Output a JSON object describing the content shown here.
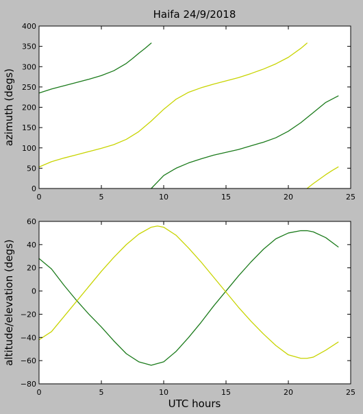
{
  "figure": {
    "title": "Haifa 24/9/2018",
    "xlabel": "UTC hours"
  },
  "colors": {
    "figure_bg": "#bfbfbf",
    "axes_bg": "#ffffff",
    "green": "#1a7a1a",
    "yellow": "#c8d400"
  },
  "chart_data": [
    {
      "type": "line",
      "ylabel": "azimuth (degs)",
      "xlim": [
        0,
        25
      ],
      "ylim": [
        0,
        400
      ],
      "xticks": [
        0,
        5,
        10,
        15,
        20,
        25
      ],
      "yticks": [
        0,
        50,
        100,
        150,
        200,
        250,
        300,
        350,
        400
      ],
      "grid": false,
      "series": [
        {
          "color": "green",
          "segments": [
            {
              "x": [
                0,
                1,
                2,
                3,
                4,
                5,
                6,
                7,
                7.5,
                8,
                8.5,
                9
              ],
              "y": [
                235,
                245,
                253,
                261,
                269,
                278,
                290,
                308,
                320,
                333,
                345,
                358
              ]
            },
            {
              "x": [
                9,
                9.5,
                10,
                11,
                12,
                13,
                14,
                15,
                16,
                17,
                18,
                19,
                20,
                21,
                22,
                23,
                24
              ],
              "y": [
                0,
                16,
                32,
                50,
                63,
                73,
                82,
                89,
                96,
                105,
                114,
                125,
                141,
                162,
                187,
                212,
                228
              ]
            }
          ]
        },
        {
          "color": "yellow",
          "segments": [
            {
              "x": [
                0,
                1,
                2,
                3,
                4,
                5,
                6,
                7,
                8,
                9,
                10,
                11,
                12,
                13,
                14,
                15,
                16,
                17,
                18,
                19,
                20,
                21,
                21.5
              ],
              "y": [
                53,
                66,
                75,
                83,
                91,
                99,
                108,
                121,
                140,
                166,
                195,
                220,
                237,
                248,
                257,
                265,
                273,
                283,
                294,
                307,
                323,
                345,
                358
              ]
            },
            {
              "x": [
                21.5,
                22,
                22.5,
                23,
                23.5,
                24
              ],
              "y": [
                0,
                12,
                23,
                34,
                44,
                53
              ]
            }
          ]
        }
      ]
    },
    {
      "type": "line",
      "ylabel": "altitude/elevation (degs)",
      "xlabel": "UTC hours",
      "xlim": [
        0,
        25
      ],
      "ylim": [
        -80,
        60
      ],
      "xticks": [
        0,
        5,
        10,
        15,
        20,
        25
      ],
      "yticks": [
        -80,
        -60,
        -40,
        -20,
        0,
        20,
        40,
        60
      ],
      "grid": false,
      "series": [
        {
          "color": "green",
          "x": [
            0,
            1,
            2,
            3,
            4,
            5,
            6,
            7,
            8,
            9,
            10,
            11,
            12,
            13,
            14,
            15,
            16,
            17,
            18,
            19,
            20,
            21,
            21.5,
            22,
            23,
            24
          ],
          "y": [
            28,
            19,
            5,
            -8,
            -20,
            -31,
            -43,
            -54,
            -61,
            -64,
            -61,
            -52,
            -40,
            -27,
            -13,
            0,
            13,
            25,
            36,
            45,
            50,
            52,
            52,
            51,
            46,
            38
          ]
        },
        {
          "color": "yellow",
          "x": [
            0,
            1,
            2,
            3,
            4,
            5,
            6,
            7,
            8,
            9,
            9.5,
            10,
            11,
            12,
            13,
            14,
            15,
            16,
            17,
            18,
            19,
            20,
            21,
            21.5,
            22,
            23,
            24
          ],
          "y": [
            -42,
            -35,
            -22,
            -9,
            4,
            17,
            29,
            40,
            49,
            55,
            56,
            55,
            48,
            37,
            25,
            12,
            -1,
            -14,
            -26,
            -37,
            -47,
            -55,
            -58,
            -58,
            -57,
            -51,
            -44
          ]
        }
      ]
    }
  ]
}
